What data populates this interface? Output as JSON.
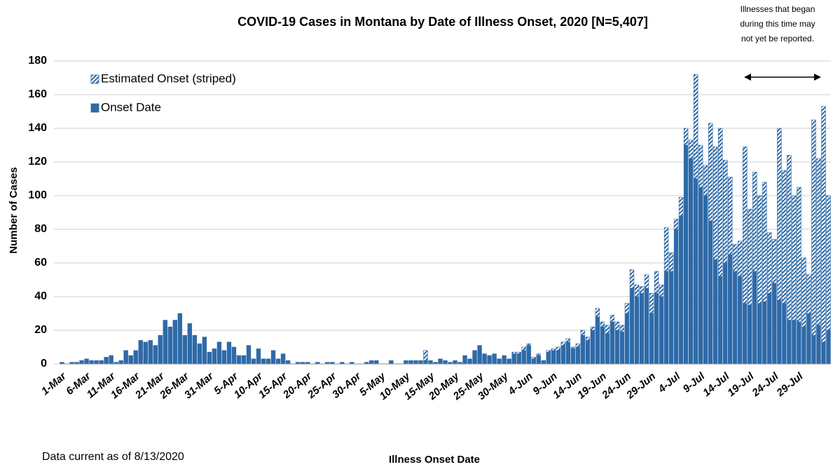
{
  "chart_data": {
    "type": "bar",
    "stacked": true,
    "title": "COVID-19 Cases in Montana by Date of Illness Onset, 2020 [N=5,407]",
    "annotation": [
      "Illnesses that began",
      "during this time may",
      "not yet be reported."
    ],
    "footnote": "Data current as of 8/13/2020",
    "x_label": "Illness Onset Date",
    "y_label": "Number of Cases",
    "ylim": [
      0,
      180
    ],
    "yticks": [
      0,
      20,
      40,
      60,
      80,
      100,
      120,
      140,
      160,
      180
    ],
    "grid": true,
    "legend": "top-left",
    "categories": [
      "1-Mar",
      null,
      null,
      null,
      null,
      "6-Mar",
      null,
      null,
      null,
      null,
      "11-Mar",
      null,
      null,
      null,
      null,
      "16-Mar",
      null,
      null,
      null,
      null,
      "21-Mar",
      null,
      null,
      null,
      null,
      "26-Mar",
      null,
      null,
      null,
      null,
      "31-Mar",
      null,
      null,
      null,
      null,
      "5-Apr",
      null,
      null,
      null,
      null,
      "10-Apr",
      null,
      null,
      null,
      null,
      "15-Apr",
      null,
      null,
      null,
      null,
      "20-Apr",
      null,
      null,
      null,
      null,
      "25-Apr",
      null,
      null,
      null,
      null,
      "30-Apr",
      null,
      null,
      null,
      null,
      "5-May",
      null,
      null,
      null,
      null,
      "10-May",
      null,
      null,
      null,
      null,
      "15-May",
      null,
      null,
      null,
      null,
      "20-May",
      null,
      null,
      null,
      null,
      "25-May",
      null,
      null,
      null,
      null,
      "30-May",
      null,
      null,
      null,
      null,
      "4-Jun",
      null,
      null,
      null,
      null,
      "9-Jun",
      null,
      null,
      null,
      null,
      "14-Jun",
      null,
      null,
      null,
      null,
      "19-Jun",
      null,
      null,
      null,
      null,
      "24-Jun",
      null,
      null,
      null,
      null,
      "29-Jun",
      null,
      null,
      null,
      null,
      "4-Jul",
      null,
      null,
      null,
      null,
      "9-Jul",
      null,
      null,
      null,
      null,
      "14-Jul",
      null,
      null,
      null,
      null,
      "19-Jul",
      null,
      null,
      null,
      null,
      "24-Jul",
      null,
      null,
      null,
      null,
      "29-Jul",
      null,
      null,
      null,
      null,
      null,
      null
    ],
    "series": [
      {
        "name": "Onset Date",
        "color": "#2e6aa8",
        "hatch": false,
        "values": [
          1,
          0,
          1,
          1,
          2,
          3,
          2,
          2,
          2,
          4,
          5,
          1,
          2,
          8,
          5,
          8,
          14,
          13,
          14,
          11,
          17,
          26,
          22,
          26,
          30,
          17,
          24,
          17,
          12,
          16,
          7,
          9,
          13,
          8,
          13,
          10,
          5,
          5,
          11,
          3,
          9,
          3,
          3,
          8,
          3,
          6,
          2,
          0,
          1,
          1,
          1,
          0,
          1,
          0,
          1,
          1,
          0,
          1,
          0,
          1,
          0,
          0,
          1,
          2,
          2,
          0,
          0,
          2,
          0,
          0,
          2,
          2,
          2,
          2,
          2,
          2,
          1,
          3,
          2,
          1,
          2,
          1,
          5,
          3,
          8,
          11,
          6,
          5,
          6,
          3,
          5,
          3,
          6,
          6,
          8,
          11,
          3,
          5,
          2,
          7,
          8,
          8,
          11,
          13,
          9,
          10,
          17,
          14,
          20,
          28,
          22,
          18,
          25,
          20,
          19,
          30,
          45,
          40,
          42,
          45,
          30,
          42,
          40,
          55,
          55,
          80,
          88,
          130,
          122,
          110,
          105,
          100,
          85,
          62,
          52,
          60,
          65,
          55,
          52,
          36,
          35,
          55,
          36,
          37,
          42,
          48,
          38,
          36,
          26,
          26,
          25,
          22,
          30,
          17,
          23,
          13,
          20
        ]
      },
      {
        "name": "Estimated Onset (striped)",
        "color": "#2e6aa8",
        "hatch": true,
        "values": [
          0,
          0,
          0,
          0,
          0,
          0,
          0,
          0,
          0,
          0,
          0,
          0,
          0,
          0,
          0,
          0,
          0,
          0,
          0,
          0,
          0,
          0,
          0,
          0,
          0,
          0,
          0,
          0,
          0,
          0,
          0,
          0,
          0,
          0,
          0,
          0,
          0,
          0,
          0,
          0,
          0,
          0,
          0,
          0,
          0,
          0,
          0,
          0,
          0,
          0,
          0,
          0,
          0,
          0,
          0,
          0,
          0,
          0,
          0,
          0,
          0,
          0,
          0,
          0,
          0,
          0,
          0,
          0,
          0,
          0,
          0,
          0,
          0,
          0,
          6,
          0,
          0,
          0,
          0,
          0,
          0,
          0,
          0,
          0,
          0,
          0,
          0,
          0,
          0,
          0,
          0,
          0,
          1,
          1,
          2,
          1,
          1,
          1,
          0,
          1,
          1,
          2,
          2,
          2,
          1,
          2,
          3,
          2,
          2,
          5,
          3,
          5,
          4,
          5,
          4,
          6,
          11,
          7,
          4,
          8,
          12,
          13,
          7,
          26,
          11,
          6,
          11,
          10,
          11,
          62,
          25,
          18,
          58,
          67,
          88,
          61,
          46,
          16,
          21,
          93,
          57,
          59,
          64,
          71,
          36,
          26,
          102,
          79,
          98,
          74,
          80,
          41,
          23,
          128,
          99,
          140,
          80
        ]
      }
    ]
  }
}
